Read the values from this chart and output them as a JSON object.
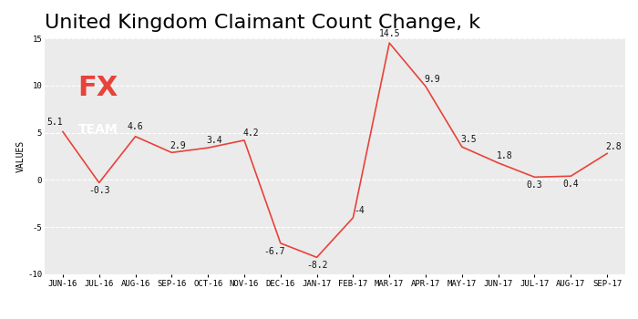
{
  "title": "United Kingdom Claimant Count Change, k",
  "ylabel": "VALUES",
  "categories": [
    "JUN-16",
    "JUL-16",
    "AUG-16",
    "SEP-16",
    "OCT-16",
    "NOV-16",
    "DEC-16",
    "JAN-17",
    "FEB-17",
    "MAR-17",
    "APR-17",
    "MAY-17",
    "JUN-17",
    "JUL-17",
    "AUG-17",
    "SEP-17"
  ],
  "values": [
    5.1,
    -0.3,
    4.6,
    2.9,
    3.4,
    4.2,
    -6.7,
    -8.2,
    -4.0,
    14.5,
    9.9,
    3.5,
    1.8,
    0.3,
    0.4,
    2.8
  ],
  "line_color": "#e8423a",
  "bg_color": "#ffffff",
  "plot_bg_color": "#ebebeb",
  "grid_color": "#ffffff",
  "title_fontsize": 16,
  "label_fontsize": 7,
  "tick_fontsize": 6.5,
  "ylim": [
    -10,
    15
  ],
  "yticks": [
    -10,
    -5,
    0,
    5,
    10,
    15
  ],
  "logo_bg": "#727272",
  "logo_fx_color": "#e8423a",
  "logo_team_color": "#ffffff",
  "annotation_labels": [
    "5.1",
    "-0.3",
    "4.6",
    "2.9",
    "3.4",
    "4.2",
    "-6.7",
    "-8.2",
    "-4",
    "14.5",
    "9.9",
    "3.5",
    "1.8",
    "0.3",
    "0.4",
    "2.8"
  ]
}
